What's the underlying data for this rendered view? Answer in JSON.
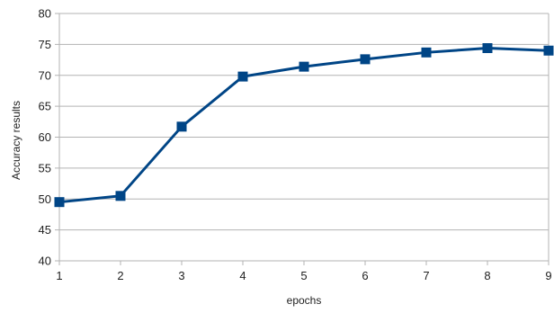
{
  "chart_data": {
    "type": "line",
    "title": "",
    "xlabel": "epochs",
    "ylabel": "Accuracy results",
    "x": [
      1,
      2,
      3,
      4,
      5,
      6,
      7,
      8,
      9
    ],
    "series": [
      {
        "values": [
          49.5,
          50.5,
          61.7,
          69.8,
          71.4,
          72.6,
          73.7,
          74.4,
          74.0
        ],
        "color": "#004586",
        "marker": "square"
      }
    ],
    "ylim": [
      40,
      80
    ],
    "yticks": [
      40,
      45,
      50,
      55,
      60,
      65,
      70,
      75,
      80
    ],
    "xticks": [
      1,
      2,
      3,
      4,
      5,
      6,
      7,
      8,
      9
    ],
    "grid": "horizontal",
    "legend": "none"
  }
}
